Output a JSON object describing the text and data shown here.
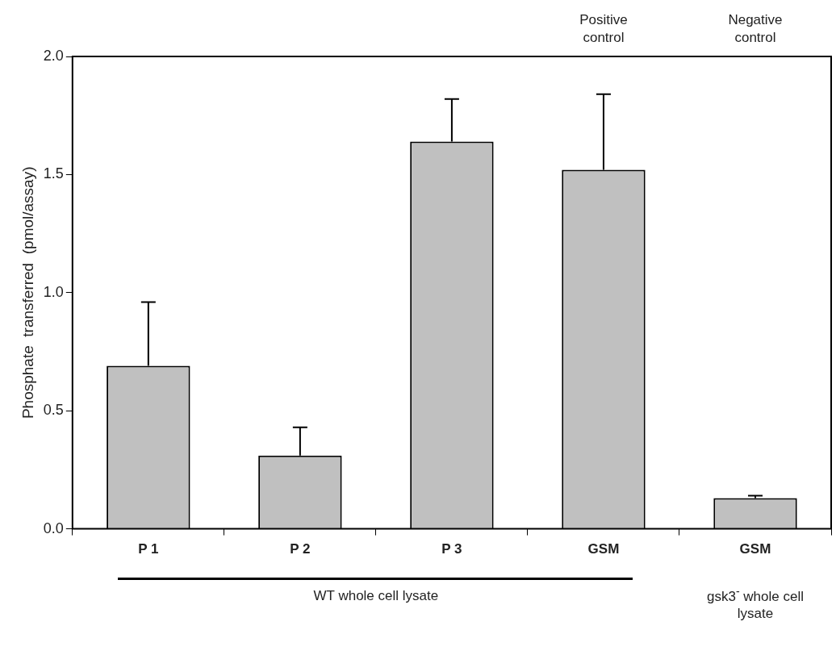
{
  "chart_data": {
    "type": "bar",
    "ylabel": "Phosphate  transferred  (pmol/assay)",
    "categories": [
      "P 1",
      "P 2",
      "P 3",
      "GSM",
      "GSM"
    ],
    "values": [
      0.69,
      0.31,
      1.64,
      1.52,
      0.13
    ],
    "color": "#c0c0c0",
    "errors": [
      [
        0.69,
        0.96
      ],
      [
        0.31,
        0.43
      ],
      [
        1.64,
        1.82
      ],
      [
        1.52,
        1.84
      ],
      [
        0.13,
        0.14
      ]
    ],
    "ylim": [
      0,
      2
    ],
    "yticks": [
      {
        "value": 0,
        "label": "0.0"
      },
      {
        "value": 0.5,
        "label": "0.5"
      },
      {
        "value": 1,
        "label": "1.0"
      },
      {
        "value": 1.5,
        "label": "1.5"
      },
      {
        "value": 2,
        "label": "2.0"
      }
    ],
    "grid": false,
    "legend": false,
    "annotations": [
      "Positive control",
      "Negative control",
      "WT whole cell lysate",
      "gsk3$^{-}$ whole cell lysate"
    ]
  }
}
